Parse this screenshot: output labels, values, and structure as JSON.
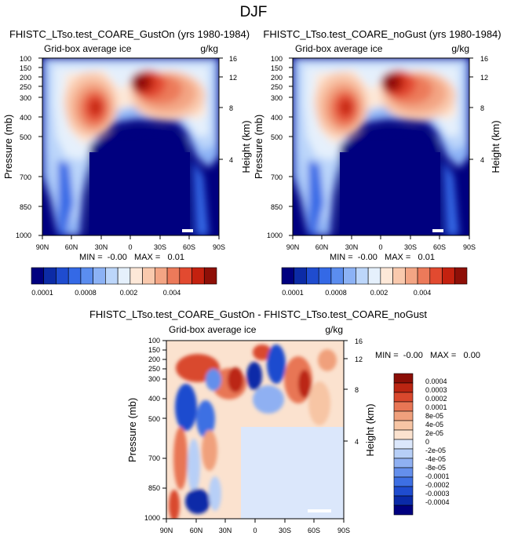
{
  "page_title": "DJF",
  "colors": {
    "seq": [
      "#00007f",
      "#0c2ba6",
      "#1f4ccf",
      "#3469e6",
      "#5b8def",
      "#8cb2f5",
      "#bcd6fa",
      "#e5f0fc",
      "#fde8d8",
      "#f9c9ad",
      "#f3a584",
      "#ec7a5a",
      "#e24a30",
      "#c4210f",
      "#8e0f07"
    ],
    "div": [
      "#000080",
      "#0a2aa8",
      "#1f4ccf",
      "#3d6fe3",
      "#648fec",
      "#8fb0f2",
      "#b7cff7",
      "#dbe7fb",
      "#fbe2cf",
      "#f7c5a4",
      "#f0a07c",
      "#e87655",
      "#d9482d",
      "#bb2512",
      "#8b0e06"
    ]
  },
  "chart_data": [
    {
      "type": "heatmap",
      "title": "FHISTC_LTso.test_COARE_GustOn (yrs 1980-1984)",
      "left_label": "Grid-box average ice",
      "right_label": "g/kg",
      "ylabel": "Pressure (mb)",
      "y2label": "Height (km)",
      "x_ticks": [
        "90N",
        "60N",
        "30N",
        "0",
        "30S",
        "60S",
        "90S"
      ],
      "y_ticks": [
        "100",
        "150",
        "200",
        "250",
        "300",
        "400",
        "500",
        "700",
        "850",
        "1000"
      ],
      "y2_ticks": [
        "16",
        "12",
        "8",
        "4"
      ],
      "stats": "MIN =  -0.00   MAX =   0.01",
      "xlim": [
        90,
        -90
      ],
      "ylim": [
        1000,
        100
      ],
      "colorbar": {
        "labels": [
          "0.0001",
          "0.0008",
          "0.002",
          "0.004"
        ]
      }
    },
    {
      "type": "heatmap",
      "title": "FHISTC_LTso.test_COARE_noGust (yrs 1980-1984)",
      "left_label": "Grid-box average ice",
      "right_label": "g/kg",
      "ylabel": "Pressure (mb)",
      "y2label": "Height (km)",
      "x_ticks": [
        "90N",
        "60N",
        "30N",
        "0",
        "30S",
        "60S",
        "90S"
      ],
      "y_ticks": [
        "100",
        "150",
        "200",
        "250",
        "300",
        "400",
        "500",
        "700",
        "850",
        "1000"
      ],
      "y2_ticks": [
        "16",
        "12",
        "8",
        "4"
      ],
      "stats": "MIN =  -0.00   MAX =   0.01",
      "xlim": [
        90,
        -90
      ],
      "ylim": [
        1000,
        100
      ],
      "colorbar": {
        "labels": [
          "0.0001",
          "0.0008",
          "0.002",
          "0.004"
        ]
      }
    },
    {
      "type": "heatmap",
      "title": "FHISTC_LTso.test_COARE_GustOn - FHISTC_LTso.test_COARE_noGust",
      "left_label": "Grid-box average ice",
      "right_label": "g/kg",
      "ylabel": "Pressure (mb)",
      "y2label": "Height (km)",
      "x_ticks": [
        "90N",
        "60N",
        "30N",
        "0",
        "30S",
        "60S",
        "90S"
      ],
      "y_ticks": [
        "100",
        "150",
        "200",
        "250",
        "300",
        "400",
        "500",
        "700",
        "850",
        "1000"
      ],
      "y2_ticks": [
        "16",
        "12",
        "8",
        "4"
      ],
      "stats": "MIN =  -0.00   MAX =   0.00",
      "xlim": [
        90,
        -90
      ],
      "ylim": [
        1000,
        100
      ],
      "colorbar": {
        "labels": [
          "0.0004",
          "0.0003",
          "0.0002",
          "0.0001",
          "8e-05",
          "4e-05",
          "2e-05",
          "0",
          "-2e-05",
          "-4e-05",
          "-8e-05",
          "-0.0001",
          "-0.0002",
          "-0.0003",
          "-0.0004"
        ]
      }
    }
  ]
}
